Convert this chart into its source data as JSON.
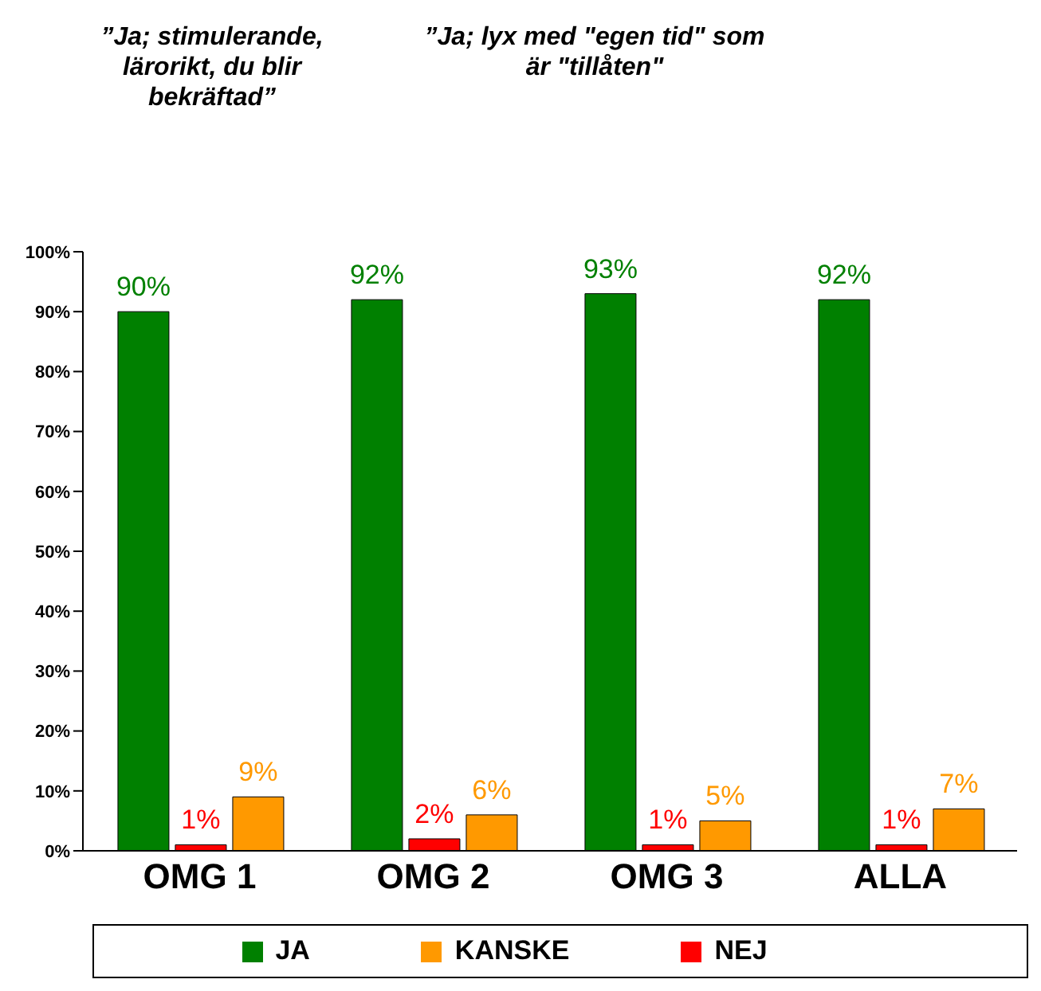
{
  "chart_data": {
    "type": "bar",
    "annotations": [
      "”Ja; stimulerande, lärorikt, du blir bekräftad”",
      "”Ja; lyx med \"egen tid\" som är \"tillåten\""
    ],
    "categories": [
      "OMG 1",
      "OMG 2",
      "OMG 3",
      "ALLA"
    ],
    "series": [
      {
        "name": "JA",
        "color": "#008000",
        "values": [
          90,
          92,
          93,
          92
        ],
        "value_labels": [
          "90%",
          "92%",
          "93%",
          "92%"
        ]
      },
      {
        "name": "NEJ",
        "color": "#ff0000",
        "values": [
          1,
          2,
          1,
          1
        ],
        "value_labels": [
          "1%",
          "2%",
          "1%",
          "1%"
        ]
      },
      {
        "name": "KANSKE",
        "color": "#ff9900",
        "values": [
          9,
          6,
          5,
          7
        ],
        "value_labels": [
          "9%",
          "6%",
          "5%",
          "7%"
        ]
      }
    ],
    "ylim": [
      0,
      100
    ],
    "yticks": [
      {
        "value": 0,
        "label": "0%"
      },
      {
        "value": 10,
        "label": "10%"
      },
      {
        "value": 20,
        "label": "20%"
      },
      {
        "value": 30,
        "label": "30%"
      },
      {
        "value": 40,
        "label": "40%"
      },
      {
        "value": 50,
        "label": "50%"
      },
      {
        "value": 60,
        "label": "60%"
      },
      {
        "value": 70,
        "label": "70%"
      },
      {
        "value": 80,
        "label": "80%"
      },
      {
        "value": 90,
        "label": "90%"
      },
      {
        "value": 100,
        "label": "100%"
      }
    ],
    "grid": false,
    "legend": "bottom"
  }
}
